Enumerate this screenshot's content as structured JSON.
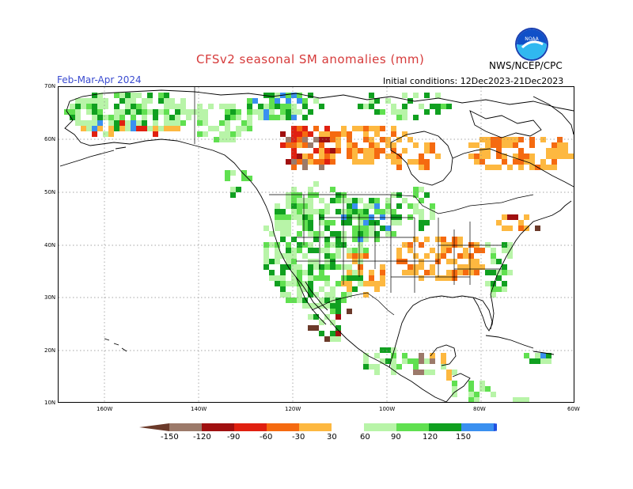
{
  "header": {
    "title": "CFSv2 seasonal SM anomalies (mm)",
    "season": "Feb-Mar-Apr 2024",
    "initial_conditions": "Initial conditions: 12Dec2023-21Dec2023",
    "agency": "NWS/NCEP/CPC",
    "logo_text": "NOAA"
  },
  "map": {
    "lat_labels": [
      "70N",
      "60N",
      "50N",
      "40N",
      "30N",
      "20N",
      "10N"
    ],
    "lon_labels": [
      "160W",
      "140W",
      "120W",
      "100W",
      "80W",
      "60W"
    ],
    "lat_range": [
      10,
      70
    ],
    "lon_range": [
      -170,
      -60
    ],
    "gridlines": true
  },
  "legend": {
    "labels": [
      "-150",
      "-120",
      "-90",
      "-60",
      "-30",
      "30",
      "60",
      "90",
      "120",
      "150"
    ],
    "colors": {
      "lt_-150": "#6b3a2a",
      "-150_-120": "#9c7a6a",
      "-120_-90": "#a01010",
      "-90_-60": "#e02010",
      "-60_-30": "#f56a10",
      "-30_neg": "#fdb840",
      "neutral": "#ffffff",
      "30_60": "#b8f4a8",
      "60_90": "#60e050",
      "90_120": "#10a020",
      "120_150": "#3a90f0",
      "gt_150": "#2050e0"
    }
  }
}
